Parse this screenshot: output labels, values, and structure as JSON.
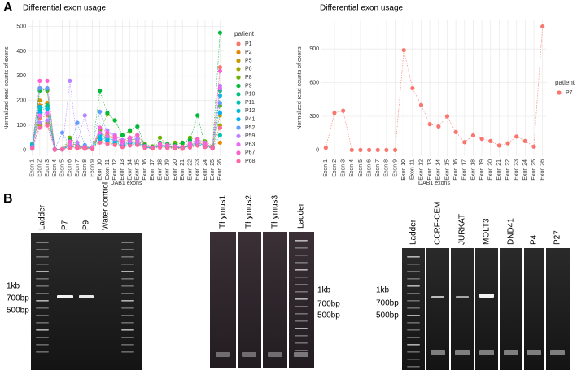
{
  "panel_labels": [
    "A",
    "B"
  ],
  "chart_data": [
    {
      "type": "line",
      "title": "Differential exon usage",
      "x_label": "DAB1 exons",
      "y_label": "Normalized read counts of exons",
      "legend_title": "patient",
      "legend": "right",
      "grid": true,
      "categories": [
        "Exon 1",
        "Exon 2",
        "Exon 3",
        "Exon 4",
        "Exon 5",
        "Exon 6",
        "Exon 7",
        "Exon 8",
        "Exon 9",
        "Exon 10",
        "Exon 11",
        "Exon 12",
        "Exon 13",
        "Exon 14",
        "Exon 15",
        "Exon 16",
        "Exon 17",
        "Exon 18",
        "Exon 19",
        "Exon 20",
        "Exon 21",
        "Exon 22",
        "Exon 23",
        "Exon 24",
        "Exon 25",
        "Exon 26"
      ],
      "ylim": [
        -25,
        525
      ],
      "yticks": [
        0,
        100,
        200,
        300,
        400,
        500
      ],
      "series": [
        {
          "name": "P1",
          "color": "#F8766D",
          "values": [
            10,
            130,
            140,
            2,
            3,
            8,
            10,
            8,
            5,
            60,
            40,
            30,
            20,
            25,
            35,
            10,
            8,
            15,
            12,
            10,
            8,
            15,
            30,
            20,
            10,
            335
          ]
        },
        {
          "name": "P2",
          "color": "#E58700",
          "values": [
            15,
            180,
            190,
            3,
            2,
            30,
            15,
            10,
            5,
            80,
            60,
            50,
            30,
            45,
            40,
            15,
            10,
            20,
            15,
            12,
            10,
            20,
            35,
            25,
            12,
            30
          ]
        },
        {
          "name": "P5",
          "color": "#C99800",
          "values": [
            12,
            200,
            190,
            2,
            3,
            20,
            12,
            10,
            6,
            70,
            55,
            45,
            25,
            40,
            35,
            12,
            10,
            18,
            14,
            10,
            8,
            18,
            30,
            20,
            10,
            140
          ]
        },
        {
          "name": "P6",
          "color": "#A3A500",
          "values": [
            8,
            100,
            110,
            1,
            2,
            15,
            8,
            6,
            4,
            40,
            30,
            25,
            15,
            20,
            25,
            8,
            6,
            12,
            10,
            8,
            6,
            12,
            20,
            15,
            8,
            100
          ]
        },
        {
          "name": "P8",
          "color": "#6BB100",
          "values": [
            20,
            250,
            240,
            3,
            4,
            50,
            20,
            15,
            8,
            80,
            145,
            120,
            60,
            75,
            60,
            25,
            15,
            50,
            20,
            30,
            25,
            50,
            40,
            35,
            15,
            180
          ]
        },
        {
          "name": "P9",
          "color": "#00BA38",
          "values": [
            18,
            240,
            245,
            4,
            3,
            40,
            18,
            12,
            7,
            240,
            150,
            120,
            60,
            80,
            95,
            20,
            12,
            30,
            25,
            20,
            30,
            40,
            140,
            20,
            10,
            475
          ]
        },
        {
          "name": "P10",
          "color": "#00BF7D",
          "values": [
            25,
            170,
            180,
            3,
            2,
            25,
            20,
            15,
            8,
            65,
            50,
            40,
            25,
            35,
            30,
            15,
            10,
            20,
            15,
            12,
            10,
            20,
            30,
            20,
            10,
            240
          ]
        },
        {
          "name": "P11",
          "color": "#00C0AF",
          "values": [
            10,
            160,
            170,
            2,
            3,
            20,
            10,
            8,
            6,
            50,
            40,
            35,
            20,
            30,
            25,
            10,
            8,
            15,
            12,
            10,
            8,
            15,
            25,
            15,
            8,
            60
          ]
        },
        {
          "name": "P12",
          "color": "#00BCD8",
          "values": [
            22,
            175,
            165,
            3,
            2,
            20,
            15,
            12,
            7,
            60,
            45,
            40,
            25,
            30,
            28,
            12,
            10,
            18,
            14,
            12,
            10,
            18,
            28,
            18,
            10,
            220
          ]
        },
        {
          "name": "P41",
          "color": "#00B0F6",
          "values": [
            15,
            150,
            150,
            2,
            3,
            15,
            12,
            10,
            5,
            45,
            35,
            30,
            18,
            25,
            22,
            10,
            8,
            15,
            12,
            10,
            8,
            14,
            22,
            15,
            8,
            150
          ]
        },
        {
          "name": "P52",
          "color": "#619CFF",
          "values": [
            5,
            250,
            250,
            2,
            70,
            15,
            110,
            20,
            10,
            155,
            70,
            60,
            30,
            40,
            45,
            10,
            8,
            25,
            15,
            12,
            10,
            25,
            30,
            20,
            10,
            190
          ]
        },
        {
          "name": "P59",
          "color": "#B983FF",
          "values": [
            8,
            110,
            120,
            1,
            2,
            280,
            30,
            140,
            8,
            90,
            80,
            60,
            40,
            50,
            45,
            15,
            10,
            20,
            18,
            15,
            12,
            30,
            40,
            30,
            10,
            260
          ]
        },
        {
          "name": "P63",
          "color": "#E76BF3",
          "values": [
            12,
            140,
            150,
            2,
            3,
            25,
            12,
            10,
            6,
            70,
            55,
            45,
            28,
            35,
            32,
            14,
            10,
            18,
            15,
            12,
            10,
            20,
            30,
            22,
            10,
            250
          ]
        },
        {
          "name": "P67",
          "color": "#FD61D1",
          "values": [
            10,
            280,
            280,
            3,
            4,
            35,
            15,
            12,
            8,
            90,
            70,
            55,
            35,
            50,
            60,
            15,
            10,
            25,
            20,
            15,
            12,
            25,
            45,
            25,
            12,
            320
          ]
        },
        {
          "name": "P68",
          "color": "#FF67A4",
          "values": [
            6,
            90,
            100,
            1,
            2,
            10,
            6,
            5,
            3,
            30,
            25,
            20,
            12,
            18,
            20,
            8,
            6,
            10,
            8,
            6,
            5,
            10,
            18,
            12,
            6,
            90
          ]
        }
      ]
    },
    {
      "type": "line",
      "title": "Differential exon usage",
      "x_label": "DAB1 exons",
      "y_label": "Normalized read counts of exons",
      "legend_title": "patient",
      "legend": "right",
      "grid": true,
      "categories": [
        "Exon 1",
        "Exon 2",
        "Exon 3",
        "Exon 4",
        "Exon 5",
        "Exon 6",
        "Exon 7",
        "Exon 8",
        "Exon 9",
        "Exon 10",
        "Exon 11",
        "Exon 12",
        "Exon 13",
        "Exon 14",
        "Exon 15",
        "Exon 16",
        "Exon 17",
        "Exon 18",
        "Exon 19",
        "Exon 20",
        "Exon 21",
        "Exon 22",
        "Exon 23",
        "Exon 24",
        "Exon 25",
        "Exon 26"
      ],
      "ylim": [
        -55,
        1155
      ],
      "yticks": [
        0,
        300,
        600,
        900
      ],
      "series": [
        {
          "name": "P7",
          "color": "#F8766D",
          "values": [
            20,
            330,
            350,
            0,
            0,
            0,
            0,
            0,
            0,
            890,
            550,
            400,
            230,
            210,
            300,
            160,
            70,
            130,
            100,
            80,
            40,
            60,
            120,
            80,
            30,
            1100
          ]
        }
      ]
    }
  ],
  "gels": [
    {
      "lanes": [
        "Ladder",
        "P7",
        "P9",
        "Water control"
      ],
      "markers": [
        "1kb",
        "700bp",
        "500bp"
      ]
    },
    {
      "lanes": [
        "Thymus1",
        "Thymus2",
        "Thymus3",
        "Ladder"
      ],
      "markers": [
        "1kb",
        "700bp",
        "500bp"
      ]
    },
    {
      "lanes": [
        "Ladder",
        "CCRF-CEM",
        "JURKAT",
        "MOLT3",
        "DND41",
        "P4",
        "P27"
      ],
      "markers": [
        "1kb",
        "700bp",
        "500bp"
      ]
    }
  ]
}
